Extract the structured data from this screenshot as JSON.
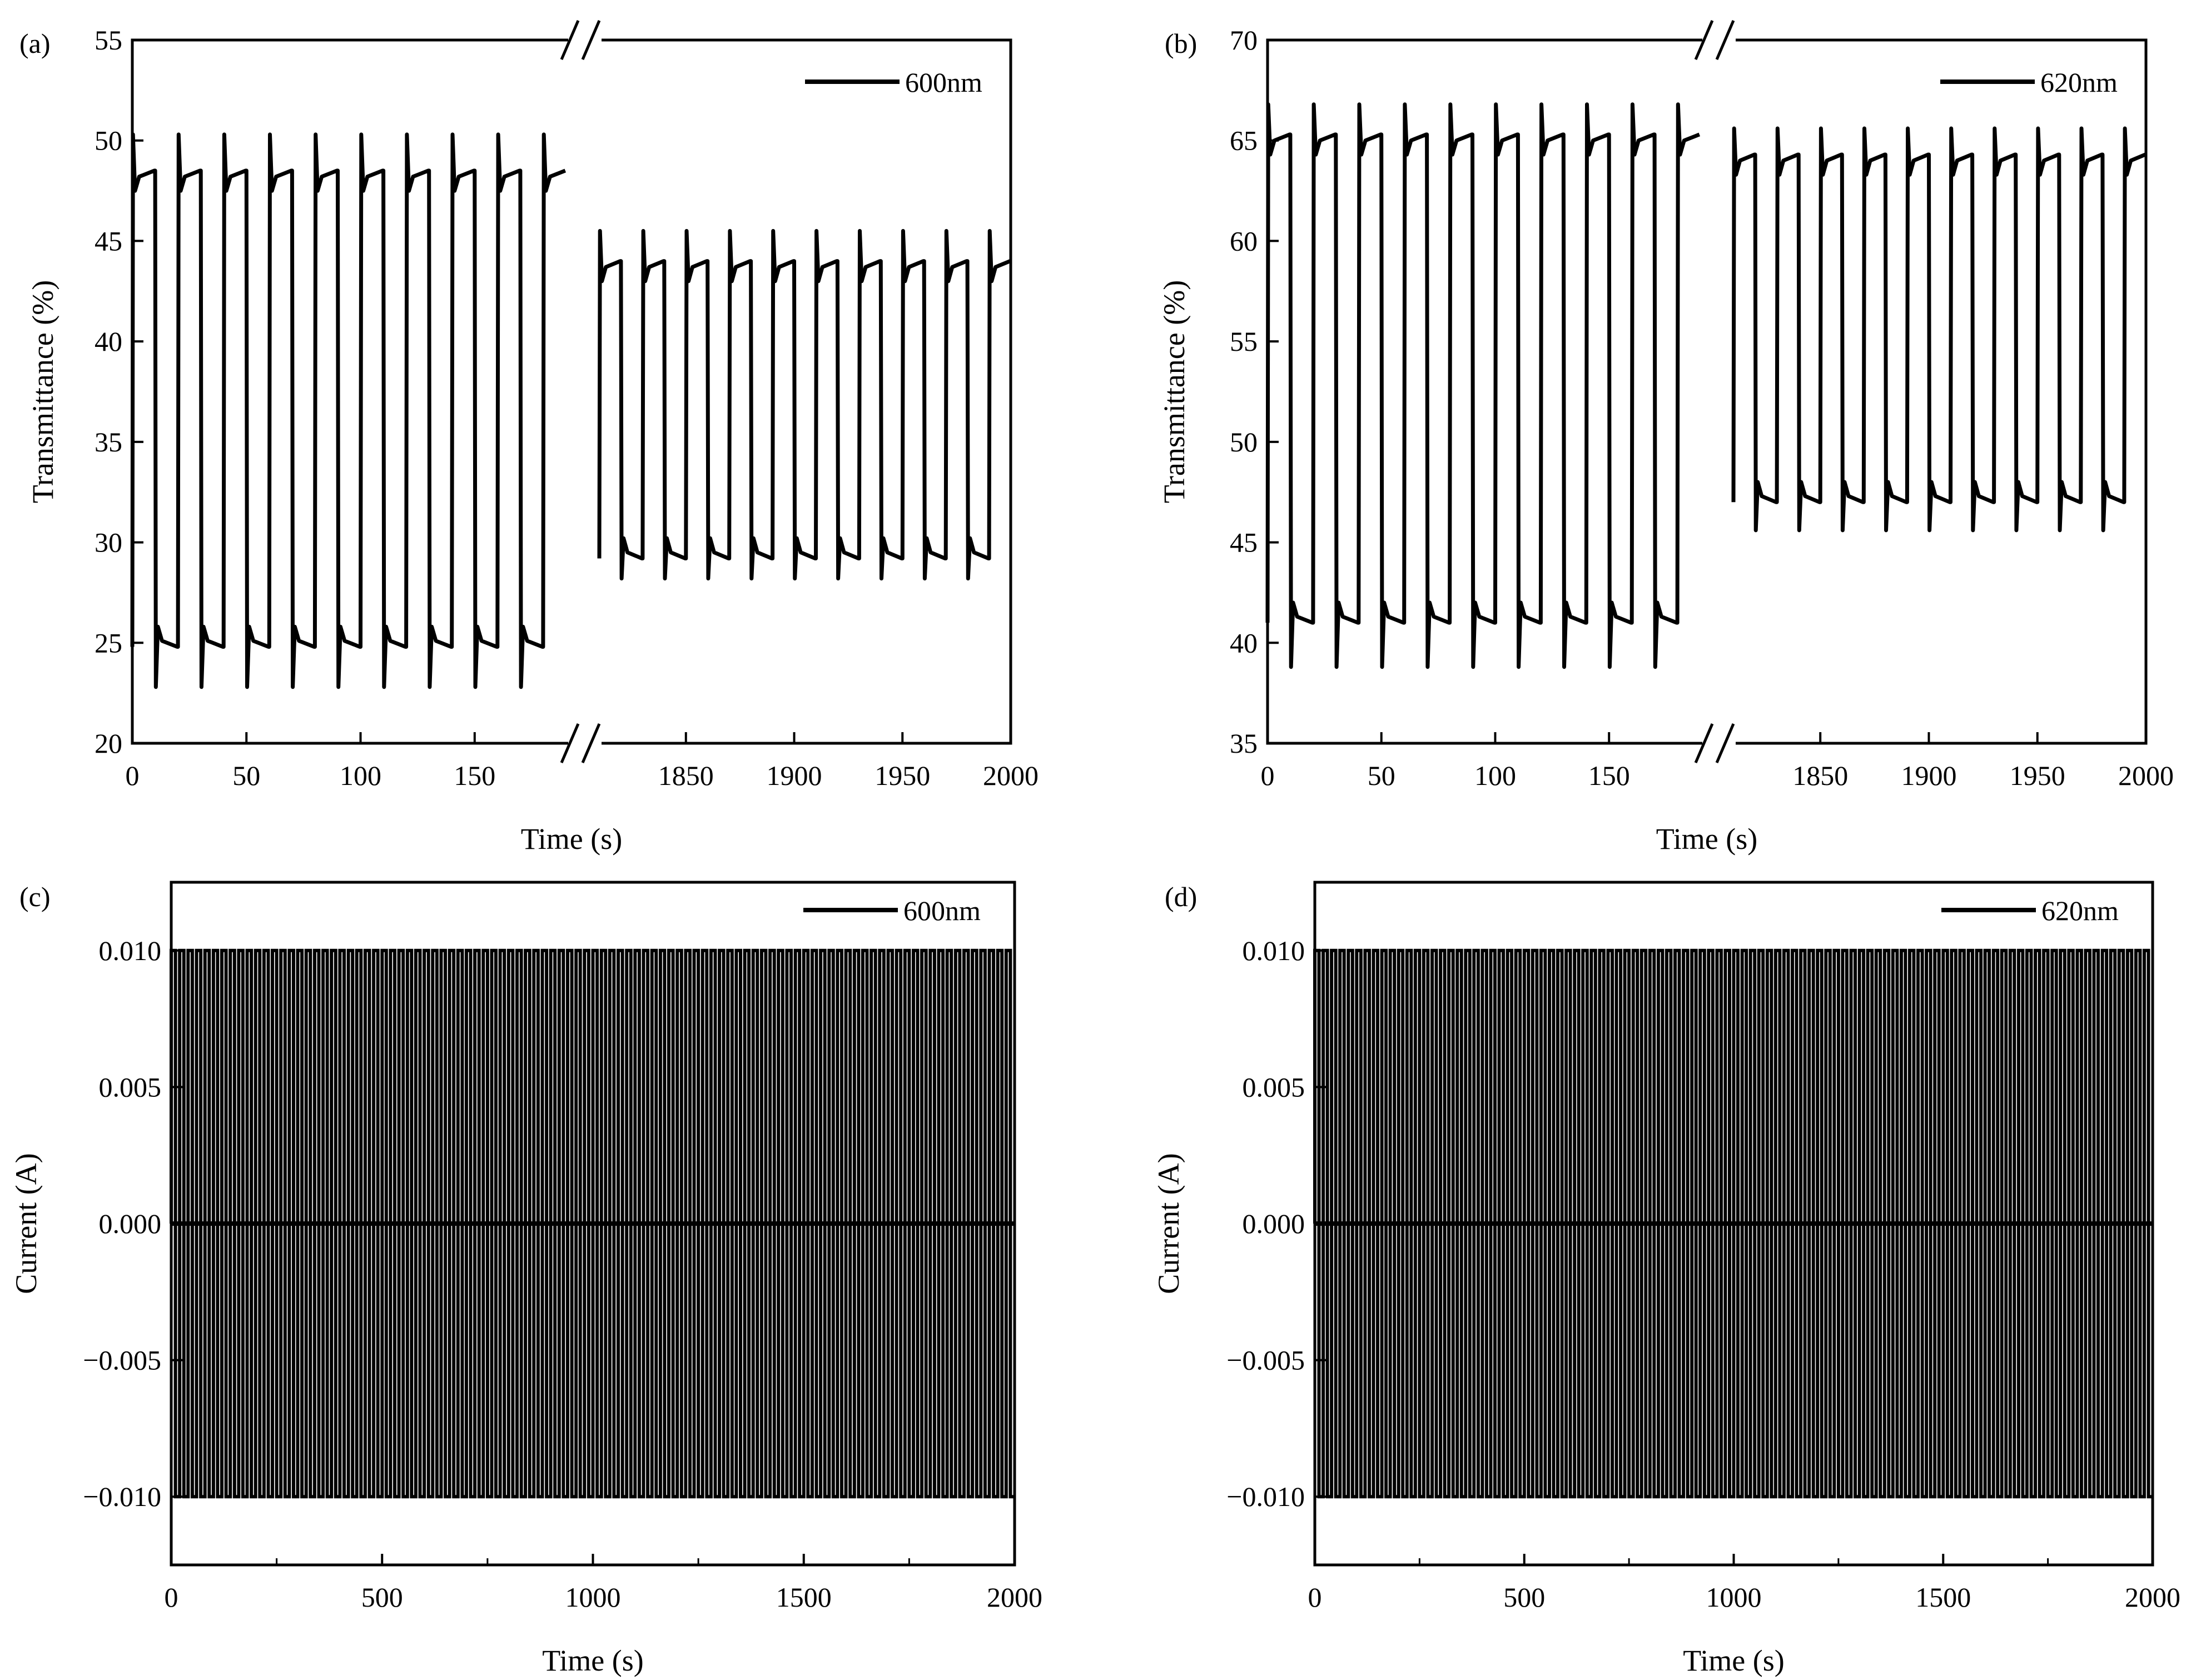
{
  "chart_data": [
    {
      "id": "a",
      "type": "line",
      "panel_label": "(a)",
      "xlabel": "Time (s)",
      "ylabel": "Transmittance (%)",
      "ylim": [
        20,
        55
      ],
      "yticks": [
        "20",
        "25",
        "30",
        "35",
        "40",
        "45",
        "50",
        "55"
      ],
      "xlim_segments": [
        [
          0,
          190
        ],
        [
          1810,
          2000
        ]
      ],
      "xticks_left": [
        "0",
        "50",
        "100",
        "150"
      ],
      "xticks_right": [
        "1850",
        "1900",
        "1950",
        "2000"
      ],
      "axis_break": "//",
      "legend": {
        "label": "600nm",
        "position": "top-right"
      },
      "series": [
        {
          "name": "600nm",
          "segment": "early (0-190 s)",
          "period_s": 20,
          "high": 48.5,
          "low": 24.8,
          "high_spike": 50.3,
          "low_spike": 22.8
        },
        {
          "name": "600nm",
          "segment": "late (1810-2000 s)",
          "period_s": 20,
          "high": 44.0,
          "low": 29.2,
          "high_spike": 45.5,
          "low_spike": 28.2
        }
      ]
    },
    {
      "id": "b",
      "type": "line",
      "panel_label": "(b)",
      "xlabel": "Time (s)",
      "ylabel": "Transmittance (%)",
      "ylim": [
        35,
        70
      ],
      "yticks": [
        "35",
        "40",
        "45",
        "50",
        "55",
        "60",
        "65",
        "70"
      ],
      "xlim_segments": [
        [
          0,
          190
        ],
        [
          1810,
          2000
        ]
      ],
      "xticks_left": [
        "0",
        "50",
        "100",
        "150"
      ],
      "xticks_right": [
        "1850",
        "1900",
        "1950",
        "2000"
      ],
      "axis_break": "//",
      "legend": {
        "label": "620nm",
        "position": "top-right"
      },
      "series": [
        {
          "name": "620nm",
          "segment": "early (0-190 s)",
          "period_s": 20,
          "high": 65.3,
          "low": 41.0,
          "high_spike": 66.8,
          "low_spike": 38.8
        },
        {
          "name": "620nm",
          "segment": "late (1810-2000 s)",
          "period_s": 20,
          "high": 64.3,
          "low": 47.0,
          "high_spike": 65.6,
          "low_spike": 45.6
        }
      ]
    },
    {
      "id": "c",
      "type": "line",
      "panel_label": "(c)",
      "xlabel": "Time (s)",
      "ylabel": "Current (A)",
      "xlim": [
        0,
        2000
      ],
      "ylim": [
        -0.0125,
        0.0125
      ],
      "xticks": [
        "0",
        "500",
        "1000",
        "1500",
        "2000"
      ],
      "yticks": [
        "0.010",
        "0.005",
        "0.000",
        "−0.005",
        "−0.010"
      ],
      "legend": {
        "label": "600nm",
        "position": "top-right"
      },
      "series": [
        {
          "name": "600nm",
          "waveform": "square",
          "period_s": 20,
          "high": 0.01,
          "low": -0.01
        }
      ]
    },
    {
      "id": "d",
      "type": "line",
      "panel_label": "(d)",
      "xlabel": "Time (s)",
      "ylabel": "Current (A)",
      "xlim": [
        0,
        2000
      ],
      "ylim": [
        -0.0125,
        0.0125
      ],
      "xticks": [
        "0",
        "500",
        "1000",
        "1500",
        "2000"
      ],
      "yticks": [
        "0.010",
        "0.005",
        "0.000",
        "−0.005",
        "−0.010"
      ],
      "legend": {
        "label": "620nm",
        "position": "top-right"
      },
      "series": [
        {
          "name": "620nm",
          "waveform": "square",
          "period_s": 20,
          "high": 0.01,
          "low": -0.01
        }
      ]
    }
  ]
}
